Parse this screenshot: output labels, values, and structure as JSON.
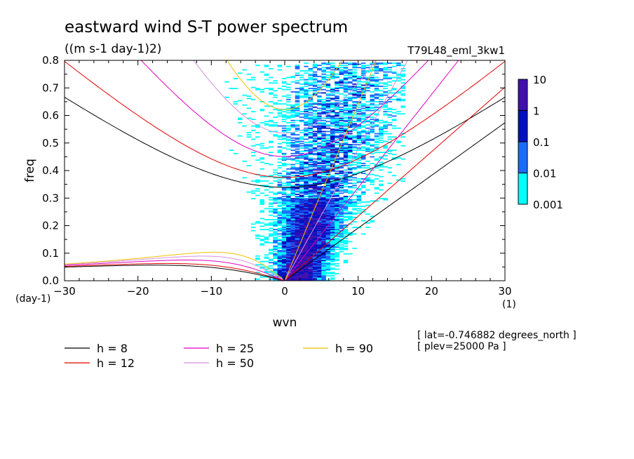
{
  "chart_data": {
    "type": "heatmap",
    "title": "eastward wind S-T power spectrum",
    "units": "((m s-1 day-1)2)",
    "run_label": "T79L48_eml_3kw1",
    "xlabel": "wvn",
    "ylabel": "freq",
    "x_units": "(1)",
    "y_units": "(day-1)",
    "xlim": [
      -30,
      30
    ],
    "ylim": [
      0,
      0.8
    ],
    "x_ticks": [
      -30,
      -20,
      -10,
      0,
      10,
      20,
      30
    ],
    "y_ticks": [
      0.0,
      0.1,
      0.2,
      0.3,
      0.4,
      0.5,
      0.6,
      0.7,
      0.8
    ],
    "x_tick_labels": [
      "−30",
      "−20",
      "−10",
      "0",
      "10",
      "20",
      "30"
    ],
    "y_tick_labels": [
      "0.0",
      "0.1",
      "0.2",
      "0.3",
      "0.4",
      "0.5",
      "0.6",
      "0.7",
      "0.8"
    ],
    "colorbar": {
      "levels": [
        0.001,
        0.01,
        0.1,
        1,
        10
      ],
      "labels": [
        "0.001",
        "0.01",
        "0.1",
        "1",
        "10"
      ],
      "colors": [
        "#00ffff",
        "#1a6cff",
        "#0010c0",
        "#4010b0"
      ]
    },
    "dispersion_curves": [
      {
        "h": 8,
        "label": "h =  8",
        "color": "#000000"
      },
      {
        "h": 12,
        "label": "h = 12",
        "color": "#e00000"
      },
      {
        "h": 25,
        "label": "h = 25",
        "color": "#e000c0"
      },
      {
        "h": 50,
        "label": "h = 50",
        "color": "#d890e0"
      },
      {
        "h": 90,
        "label": "h = 90",
        "color": "#f0c000"
      }
    ],
    "annotations": [
      "[ lat=-0.746882 degrees_north ]",
      "[ plev=25000 Pa ]"
    ]
  }
}
